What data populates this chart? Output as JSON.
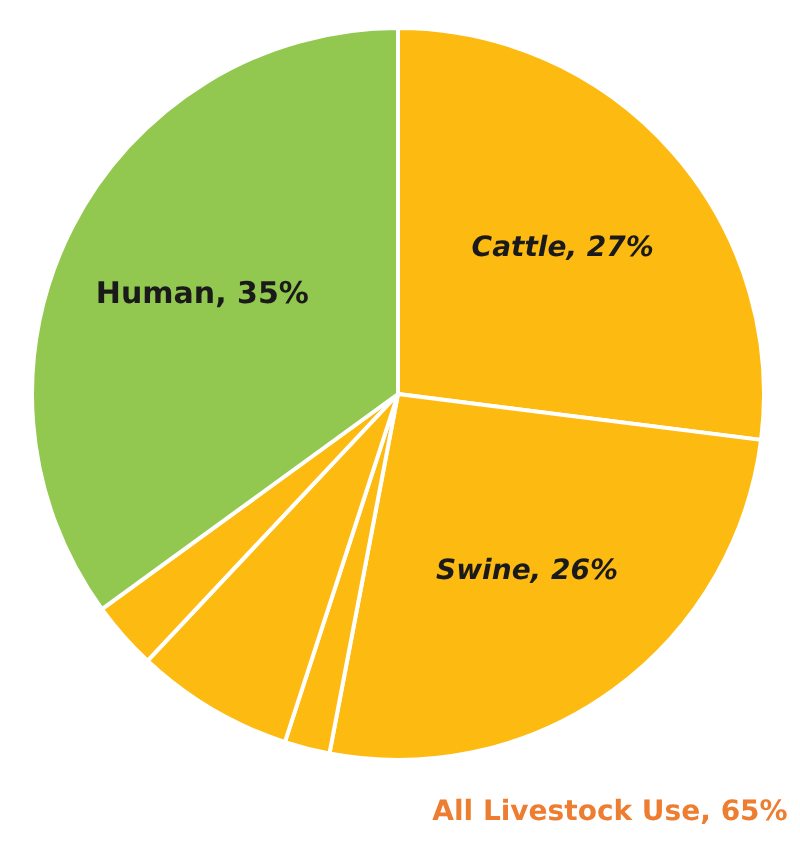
{
  "chart_data": {
    "type": "pie",
    "categories": [
      "Cattle",
      "Swine",
      null,
      null,
      null,
      "Human"
    ],
    "values": [
      27,
      26,
      2,
      7,
      3,
      35
    ],
    "colors": [
      "#fdbb12",
      "#fdbb12",
      "#fdbb12",
      "#fdbb12",
      "#fdbb12",
      "#92c84f"
    ],
    "value_labels": [
      "27%",
      "26%",
      null,
      null,
      null,
      "35%"
    ],
    "annotations": [
      "All Livestock Use, 65%"
    ]
  }
}
